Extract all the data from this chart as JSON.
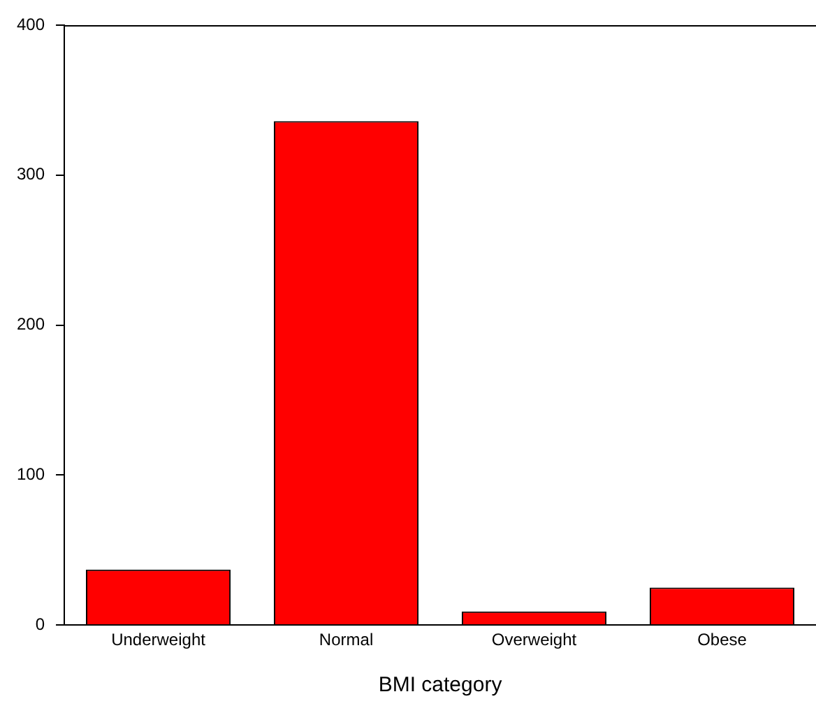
{
  "chart_data": {
    "type": "bar",
    "xlabel": "BMI category",
    "categories": [
      "Underweight",
      "Normal",
      "Overweight",
      "Obese"
    ],
    "values": [
      37,
      336,
      9,
      25
    ],
    "color": "#ff0000",
    "ylim": [
      0,
      400
    ],
    "yticks": [
      0,
      100,
      200,
      300,
      400
    ],
    "grid": false,
    "legend": false
  }
}
